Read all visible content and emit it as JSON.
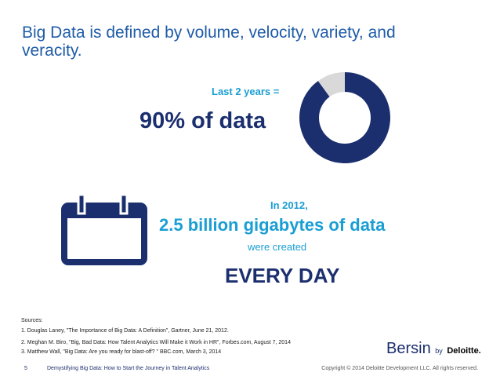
{
  "title": "Big Data is defined by volume, velocity, variety, and veracity.",
  "stat1": {
    "lead": "Last 2 years =",
    "headline": "90% of data"
  },
  "donut": {
    "type": "pie",
    "values": [
      90,
      10
    ],
    "colors": [
      "#1b2f6e",
      "#d9d9d9"
    ]
  },
  "stat2": {
    "lead": "In 2012,",
    "headline": "2.5 billion gigabytes of data",
    "sub": "were created",
    "emphasis": "EVERY DAY"
  },
  "sources": {
    "heading": "Sources:",
    "items": [
      "1. Douglas Laney, \"The Importance of Big Data: A Definition\", Gartner, June 21, 2012.",
      "2. Meghan M. Biro, \"Big, Bad Data: How Talent Analytics Will Make it Work in HR\", Forbes.com, August 7, 2014",
      "3. Matthew Wall, \"Big Data: Are you ready for blast-off? \" BBC.com, March 3, 2014"
    ]
  },
  "logo": {
    "brand": "Bersin",
    "by": "by",
    "company": "Deloitte."
  },
  "footer": {
    "page": "5",
    "deck": "Demystifying Big Data: How to Start the Journey in Talent Analytics",
    "copyright": "Copyright © 2014 Deloitte Development LLC. All rights reserved."
  }
}
